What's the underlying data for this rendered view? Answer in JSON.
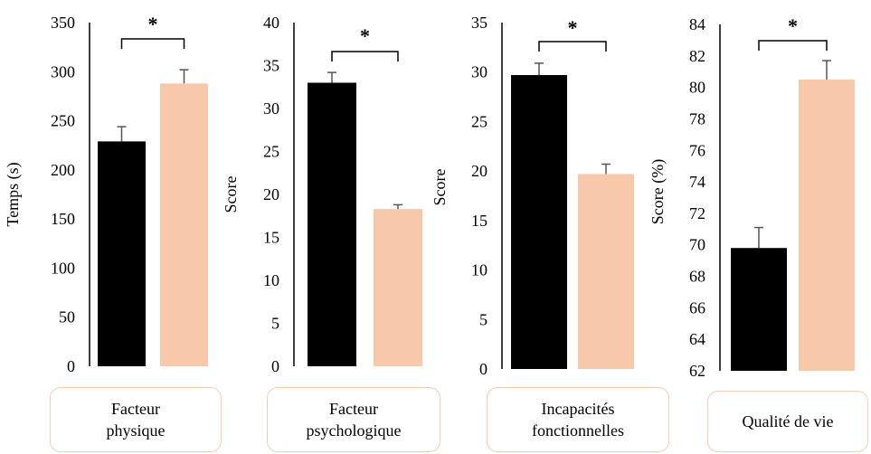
{
  "colors": {
    "black_series": "#000000",
    "peach_series": "#f7c8aa",
    "axis": "#000000",
    "error_bar": "#555555",
    "caption_border": "#f5cdb1"
  },
  "chart_data": [
    {
      "type": "bar",
      "ylabel": "Temps (s)",
      "ylim": [
        0,
        350
      ],
      "yticks": [
        "0",
        "50",
        "100",
        "150",
        "200",
        "250",
        "300",
        "350"
      ],
      "caption": "Facteur\nphysique",
      "significance": "*",
      "series": [
        {
          "color": "#000000",
          "values": [
            229
          ],
          "error": [
            15
          ]
        },
        {
          "color": "#f7c8aa",
          "values": [
            288
          ],
          "error": [
            14
          ]
        }
      ]
    },
    {
      "type": "bar",
      "ylabel": "Score",
      "ylim": [
        0,
        40
      ],
      "yticks": [
        "0",
        "5",
        "10",
        "15",
        "20",
        "25",
        "30",
        "35",
        "40"
      ],
      "caption": "Facteur\npsychologique",
      "significance": "*",
      "series": [
        {
          "color": "#000000",
          "values": [
            33
          ],
          "error": [
            1.2
          ]
        },
        {
          "color": "#f7c8aa",
          "values": [
            18.3
          ],
          "error": [
            0.5
          ]
        }
      ]
    },
    {
      "type": "bar",
      "ylabel": "Score",
      "ylim": [
        0,
        35
      ],
      "yticks": [
        "0",
        "5",
        "10",
        "15",
        "20",
        "25",
        "30",
        "35"
      ],
      "caption": "Incapacités\nfonctionnelles",
      "significance": "*",
      "series": [
        {
          "color": "#000000",
          "values": [
            29.7
          ],
          "error": [
            1.2
          ]
        },
        {
          "color": "#f7c8aa",
          "values": [
            19.7
          ],
          "error": [
            1.0
          ]
        }
      ]
    },
    {
      "type": "bar",
      "ylabel": "Score (%)",
      "ylim": [
        62,
        84
      ],
      "yticks": [
        "62",
        "64",
        "66",
        "68",
        "70",
        "72",
        "74",
        "76",
        "78",
        "80",
        "82",
        "84"
      ],
      "caption": "Qualité de vie",
      "significance": "*",
      "series": [
        {
          "color": "#000000",
          "values": [
            69.8
          ],
          "error": [
            1.3
          ]
        },
        {
          "color": "#f7c8aa",
          "values": [
            80.5
          ],
          "error": [
            1.2
          ]
        }
      ]
    }
  ]
}
